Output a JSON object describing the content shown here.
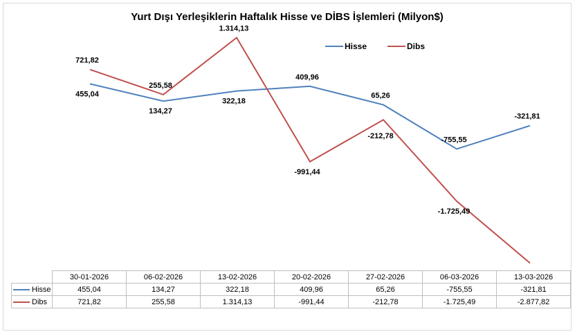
{
  "chart_data": {
    "type": "line",
    "title": "Yurt Dışı Yerleşiklerin Haftalık Hisse ve DİBS İşlemleri (Milyon$)",
    "categories": [
      "30-01-2026",
      "06-02-2026",
      "13-02-2026",
      "20-02-2026",
      "27-02-2026",
      "06-03-2026",
      "13-03-2026"
    ],
    "series": [
      {
        "name": "Hisse",
        "color": "#4f81bd",
        "values": [
          455.04,
          134.27,
          322.18,
          409.96,
          65.26,
          -755.55,
          -321.81
        ],
        "labels": [
          "455,04",
          "134,27",
          "322,18",
          "409,96",
          "65,26",
          "-755,55",
          "-321,81"
        ]
      },
      {
        "name": "Dibs",
        "color": "#c0504d",
        "values": [
          721.82,
          255.58,
          1314.13,
          -991.44,
          -212.78,
          -1725.49,
          -2877.82
        ],
        "labels": [
          "721,82",
          "255,58",
          "1.314,13",
          "-991,44",
          "-212,78",
          "-1.725,49",
          "-2.877,82"
        ]
      }
    ],
    "ylim": [
      -3000,
      1500
    ],
    "legend": "top-right",
    "data_table": true,
    "grid": false
  }
}
